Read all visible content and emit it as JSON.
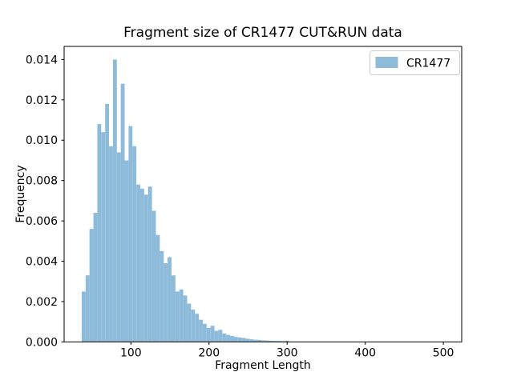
{
  "figure": {
    "background_color": "#ffffff",
    "spine_color": "#000000"
  },
  "chart_data": {
    "type": "bar",
    "subtype": "histogram",
    "title": "Fragment size of CR1477 CUT&RUN data",
    "xlabel": "Fragment Length",
    "ylabel": "Frequency",
    "series_name": "CR1477",
    "bar_color": "#8fbbda",
    "grid": false,
    "legend": {
      "position": "upper right",
      "entries": [
        {
          "label": "CR1477",
          "color": "#8fbbda"
        }
      ],
      "border_color": "#cccccc",
      "background": "rgba(255,255,255,0.8)"
    },
    "xlim": [
      14.5,
      523.5
    ],
    "ylim": [
      0,
      0.01465
    ],
    "x_ticks": [
      100,
      200,
      300,
      400,
      500
    ],
    "y_ticks": [
      0.0,
      0.002,
      0.004,
      0.006,
      0.008,
      0.01,
      0.012,
      0.014
    ],
    "y_tick_decimals": 3,
    "bin_start": 37,
    "bin_width": 5,
    "frequencies": [
      0.0025,
      0.0033,
      0.0056,
      0.0064,
      0.0108,
      0.0104,
      0.0118,
      0.0097,
      0.014,
      0.0094,
      0.0128,
      0.009,
      0.0107,
      0.0097,
      0.0078,
      0.0076,
      0.0073,
      0.0077,
      0.0065,
      0.0053,
      0.0045,
      0.0039,
      0.0042,
      0.0033,
      0.0025,
      0.0026,
      0.0023,
      0.0019,
      0.0016,
      0.0014,
      0.0011,
      0.0009,
      0.0007,
      0.0008,
      0.00055,
      0.0006,
      0.00042,
      0.00035,
      0.0003,
      0.00025,
      0.00022,
      0.0002,
      0.00016,
      0.00013,
      0.00011,
      0.0001,
      8e-05,
      7e-05,
      6e-05,
      5e-05,
      5e-05,
      4e-05,
      6e-05,
      2e-05
    ]
  }
}
